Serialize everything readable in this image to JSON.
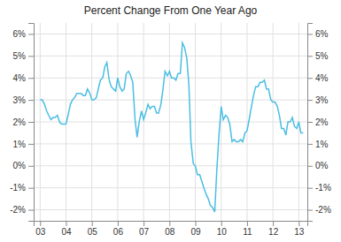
{
  "chart_data": {
    "type": "line",
    "title": "Percent Change From One Year Ago",
    "color": "#4BBEE3",
    "grid": true,
    "xlim": [
      2002.75,
      2013.33
    ],
    "xticks": [
      {
        "value": 2003,
        "label": "03"
      },
      {
        "value": 2004,
        "label": "04"
      },
      {
        "value": 2005,
        "label": "05"
      },
      {
        "value": 2006,
        "label": "06"
      },
      {
        "value": 2007,
        "label": "07"
      },
      {
        "value": 2008,
        "label": "08"
      },
      {
        "value": 2009,
        "label": "09"
      },
      {
        "value": 2010,
        "label": "10"
      },
      {
        "value": 2011,
        "label": "11"
      },
      {
        "value": 2012,
        "label": "12"
      },
      {
        "value": 2013,
        "label": "13"
      }
    ],
    "ylim": [
      -2.5,
      6.5
    ],
    "yticks": [
      {
        "value": -2,
        "label": "-2%"
      },
      {
        "value": -1,
        "label": "-1%"
      },
      {
        "value": 0,
        "label": "0%"
      },
      {
        "value": 1,
        "label": "1%"
      },
      {
        "value": 2,
        "label": "2%"
      },
      {
        "value": 3,
        "label": "3%"
      },
      {
        "value": 4,
        "label": "4%"
      },
      {
        "value": 5,
        "label": "5%"
      },
      {
        "value": 6,
        "label": "6%"
      }
    ],
    "y2lim": [
      -2.5,
      6.5
    ],
    "y2ticks": [
      {
        "value": -2,
        "label": "-2%"
      },
      {
        "value": -1,
        "label": "-1%"
      },
      {
        "value": 0,
        "label": "0%"
      },
      {
        "value": 1,
        "label": "1%"
      },
      {
        "value": 2,
        "label": "2%"
      },
      {
        "value": 3,
        "label": "3%"
      },
      {
        "value": 4,
        "label": "4%"
      },
      {
        "value": 5,
        "label": "5%"
      },
      {
        "value": 6,
        "label": "6%"
      }
    ],
    "x": [
      2003.0,
      2003.08,
      2003.17,
      2003.25,
      2003.33,
      2003.42,
      2003.5,
      2003.58,
      2003.67,
      2003.75,
      2003.83,
      2003.92,
      2004.0,
      2004.08,
      2004.17,
      2004.25,
      2004.33,
      2004.42,
      2004.5,
      2004.58,
      2004.67,
      2004.75,
      2004.83,
      2004.92,
      2005.0,
      2005.08,
      2005.17,
      2005.25,
      2005.33,
      2005.42,
      2005.5,
      2005.58,
      2005.67,
      2005.75,
      2005.83,
      2005.92,
      2006.0,
      2006.08,
      2006.17,
      2006.25,
      2006.33,
      2006.42,
      2006.5,
      2006.58,
      2006.67,
      2006.75,
      2006.83,
      2006.92,
      2007.0,
      2007.08,
      2007.17,
      2007.25,
      2007.33,
      2007.42,
      2007.5,
      2007.58,
      2007.67,
      2007.75,
      2007.83,
      2007.92,
      2008.0,
      2008.08,
      2008.17,
      2008.25,
      2008.33,
      2008.42,
      2008.5,
      2008.58,
      2008.67,
      2008.75,
      2008.83,
      2008.92,
      2009.0,
      2009.08,
      2009.17,
      2009.25,
      2009.33,
      2009.42,
      2009.5,
      2009.58,
      2009.67,
      2009.75,
      2009.83,
      2009.92,
      2010.0,
      2010.08,
      2010.17,
      2010.25,
      2010.33,
      2010.42,
      2010.5,
      2010.58,
      2010.67,
      2010.75,
      2010.83,
      2010.92,
      2011.0,
      2011.08,
      2011.17,
      2011.25,
      2011.33,
      2011.42,
      2011.5,
      2011.58,
      2011.67,
      2011.75,
      2011.83,
      2011.92,
      2012.0,
      2012.08,
      2012.17,
      2012.25,
      2012.33,
      2012.42,
      2012.5,
      2012.58,
      2012.67,
      2012.75,
      2012.83,
      2012.92,
      2013.0,
      2013.08,
      2013.17
    ],
    "values": [
      3.0,
      3.0,
      2.8,
      2.5,
      2.3,
      2.1,
      2.2,
      2.2,
      2.3,
      2.0,
      1.9,
      1.9,
      1.9,
      2.3,
      2.8,
      3.0,
      3.1,
      3.3,
      3.3,
      3.3,
      3.2,
      3.2,
      3.5,
      3.3,
      3.0,
      3.0,
      3.1,
      3.5,
      3.9,
      4.0,
      4.5,
      4.7,
      3.9,
      3.6,
      3.5,
      3.4,
      4.0,
      3.6,
      3.4,
      3.5,
      4.2,
      4.3,
      4.1,
      3.8,
      2.1,
      1.3,
      2.0,
      2.5,
      2.1,
      2.4,
      2.8,
      2.6,
      2.7,
      2.7,
      2.4,
      2.4,
      2.8,
      3.5,
      4.3,
      4.1,
      4.3,
      4.0,
      4.0,
      3.9,
      4.2,
      4.2,
      5.6,
      5.4,
      4.9,
      3.7,
      1.1,
      0.1,
      0.0,
      -0.4,
      -0.4,
      -0.7,
      -1.0,
      -1.3,
      -1.5,
      -1.8,
      -1.9,
      -2.1,
      -0.2,
      1.5,
      2.7,
      2.1,
      2.3,
      2.2,
      1.9,
      1.1,
      1.2,
      1.1,
      1.1,
      1.2,
      1.1,
      1.5,
      1.6,
      2.1,
      2.7,
      3.2,
      3.6,
      3.6,
      3.8,
      3.8,
      3.9,
      3.5,
      3.5,
      3.0,
      2.9,
      2.9,
      2.7,
      2.3,
      1.7,
      1.7,
      1.4,
      2.0,
      2.0,
      2.2,
      1.8,
      1.7,
      2.0,
      1.5,
      1.5
    ]
  }
}
